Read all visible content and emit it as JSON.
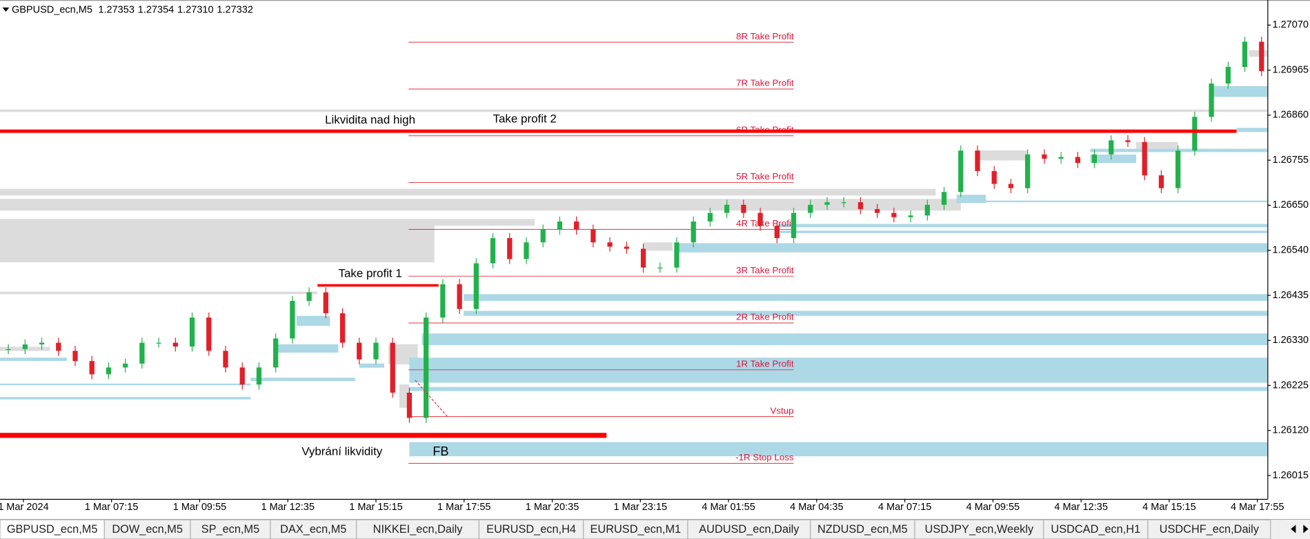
{
  "header": {
    "symbol": "GBPUSD_ecn,M5",
    "ohlc": [
      "1.27353",
      "1.27354",
      "1.27310",
      "1.27332"
    ]
  },
  "price_axis": [
    "1.27070",
    "1.26965",
    "1.26860",
    "1.26755",
    "1.26650",
    "1.26540",
    "1.26435",
    "1.26330",
    "1.26225",
    "1.26120",
    "1.26015"
  ],
  "time_axis": [
    "1 Mar 2024",
    "1 Mar 07:15",
    "1 Mar 09:55",
    "1 Mar 12:35",
    "1 Mar 15:15",
    "1 Mar 17:55",
    "1 Mar 20:35",
    "1 Mar 23:15",
    "4 Mar 01:55",
    "4 Mar 04:35",
    "4 Mar 07:15",
    "4 Mar 09:55",
    "4 Mar 12:35",
    "4 Mar 15:15",
    "4 Mar 17:55"
  ],
  "levels": [
    "8R Take Profit",
    "7R Take Profit",
    "6R Take Profit",
    "5R Take Profit",
    "4R Take Profit",
    "3R Take Profit",
    "2R Take Profit",
    "1R Take Profit",
    "Vstup",
    "-1R Stop Loss"
  ],
  "annotations": {
    "liquidity_high": "Likvidita nad high",
    "take_profit_2": "Take profit 2",
    "take_profit_1": "Take profit 1",
    "liquidity_grab": "Vybrání likvidity",
    "fb": "FB"
  },
  "candles": {
    "closes": [
      1.26311,
      1.26322,
      1.26326,
      1.26307,
      1.26283,
      1.26252,
      1.26268,
      1.26277,
      1.26326,
      1.26326,
      1.26317,
      1.26385,
      1.26307,
      1.26268,
      1.26228,
      1.26268,
      1.26336,
      1.26424,
      1.26444,
      1.26395,
      1.26326,
      1.26287,
      1.26326,
      1.26209,
      1.2615,
      1.26385,
      1.26463,
      1.26405,
      1.26512,
      1.26571,
      1.26522,
      1.26561,
      1.26591,
      1.2661,
      1.26591,
      1.26561,
      1.26551,
      1.26546,
      1.26502,
      1.26502,
      1.26561,
      1.2661,
      1.2663,
      1.26649,
      1.2663,
      1.266,
      1.26571,
      1.2663,
      1.26649,
      1.26655,
      1.26655,
      1.26639,
      1.2663,
      1.2662,
      1.26624,
      1.26649,
      1.26679,
      1.26776,
      1.26728,
      1.26698,
      1.26688,
      1.26767,
      1.26757,
      1.26761,
      1.26747,
      1.26767,
      1.268,
      1.26796,
      1.26718,
      1.26688,
      1.26776,
      1.26855,
      1.26933,
      1.26972,
      1.27031,
      1.26962
    ]
  },
  "tabs": [
    "GBPUSD_ecn,M5",
    "DOW_ecn,M5",
    "SP_ecn,M5",
    "DAX_ecn,M5",
    "NIKKEI_ecn,Daily",
    "EURUSD_ecn,H4",
    "EURUSD_ecn,M1",
    "AUDUSD_ecn,Daily",
    "NZDUSD_ecn,M5",
    "USDJPY_ecn,Weekly",
    "USDCAD_ecn,H1",
    "USDCHF_ecn,Daily"
  ]
}
